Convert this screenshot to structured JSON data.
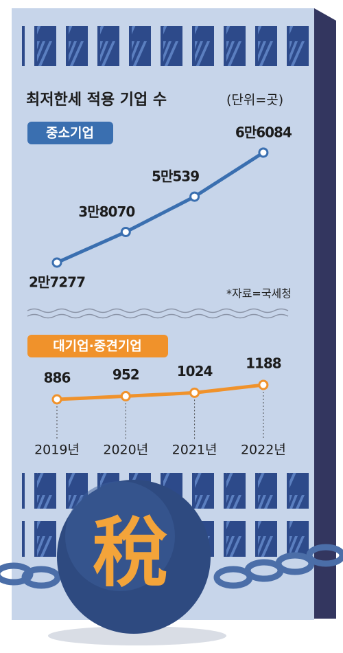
{
  "chart_data": [
    {
      "type": "line",
      "title": "최저한세 적용 기업 수",
      "subtitle": "(단위=곳)",
      "categories": [
        null,
        null,
        null,
        null
      ],
      "series": [
        {
          "name": "중소기업",
          "color": "#3a6fb0",
          "values": [
            27277,
            38070,
            50539,
            66084
          ],
          "value_labels": [
            "2만7277",
            "3만8070",
            "5만539",
            "6만6084"
          ]
        }
      ],
      "source": "*자료=국세청"
    },
    {
      "type": "line",
      "categories": [
        "2019년",
        "2020년",
        "2021년",
        "2022년"
      ],
      "series": [
        {
          "name": "대기업·중견기업",
          "color": "#f0922b",
          "values": [
            886,
            952,
            1024,
            1188
          ]
        }
      ]
    }
  ],
  "illustration_text": "稅"
}
